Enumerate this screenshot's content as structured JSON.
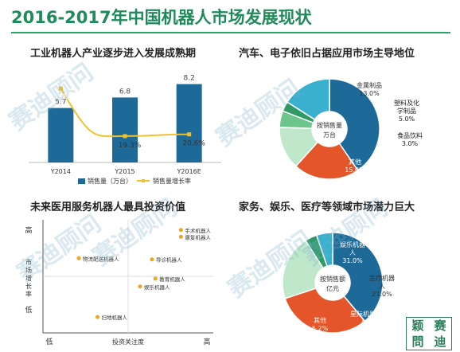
{
  "page": {
    "title": "2016-2017年中国机器人市场发展现状",
    "watermark": "赛迪顾问",
    "logo": [
      "赛",
      "颖",
      "問",
      "迪"
    ]
  },
  "chart_data": [
    {
      "id": "industrial",
      "type": "bar",
      "title": "工业机器人产业逐步进入发展成熟期",
      "categories": [
        "Y2014",
        "Y2015",
        "Y2016E"
      ],
      "series": [
        {
          "name": "销售量（万台）",
          "type": "bar",
          "values": [
            5.7,
            6.8,
            8.2
          ],
          "value_labels": [
            "5.7",
            "6.8",
            "8.2"
          ],
          "color": "#1d6a99"
        },
        {
          "name": "销售量增长率",
          "type": "line",
          "values": [
            54.1,
            19.3,
            20.6
          ],
          "value_labels": [
            "54.1%",
            "19.3%",
            "20.6%"
          ],
          "color": "#f2c12e"
        }
      ],
      "ylim": [
        0,
        10
      ],
      "y2lim": [
        0,
        70
      ],
      "legend": "bottom"
    },
    {
      "id": "industry-share",
      "type": "pie",
      "title": "汽车、电子依旧占据应用市场主导地位",
      "center_label": [
        "按销售量",
        "万台"
      ],
      "slices": [
        {
          "label": "汽车及零部件",
          "lines": [
            "汽车及零",
            "部件"
          ],
          "value": 38.0,
          "value_label": "38.0%",
          "color": "#1d6a99"
        },
        {
          "label": "电子电器",
          "lines": [
            "电子电器"
          ],
          "value": 20.0,
          "value_label": "20.0%",
          "color": "#e5552a"
        },
        {
          "label": "金属制品",
          "lines": [
            "金属制品"
          ],
          "value": 13.0,
          "value_label": "13.0%",
          "color": "#bfe8cb"
        },
        {
          "label": "塑料及化学制品",
          "lines": [
            "塑料及化",
            "学制品"
          ],
          "value": 5.0,
          "value_label": "5.0%",
          "color": "#6cc68c"
        },
        {
          "label": "食品饮料",
          "lines": [
            "食品饮料"
          ],
          "value": 3.0,
          "value_label": "3.0%",
          "color": "#2f9a66"
        },
        {
          "label": "其他",
          "lines": [
            "其他"
          ],
          "value": 15.0,
          "value_label": "15.0%",
          "color": "#3ab0cf"
        }
      ]
    },
    {
      "id": "service-robots",
      "type": "scatter",
      "title": "未来医用服务机器人最具投资价值",
      "xlabel": "投资关注度",
      "ylabel": "市场增长率",
      "x_ticks": [
        "低",
        "高"
      ],
      "y_ticks": [
        "高",
        "低"
      ],
      "xlim": [
        0,
        10
      ],
      "ylim": [
        0,
        10
      ],
      "points": [
        {
          "label": "手术机器人",
          "x": 8.1,
          "y": 9.1
        },
        {
          "label": "康复机器人",
          "x": 8.1,
          "y": 8.5
        },
        {
          "label": "物流配送机器人",
          "x": 2.1,
          "y": 6.6
        },
        {
          "label": "导诊机器人",
          "x": 6.4,
          "y": 6.5
        },
        {
          "label": "教育机器人",
          "x": 6.6,
          "y": 4.8
        },
        {
          "label": "娱乐机器人",
          "x": 5.7,
          "y": 4.1
        },
        {
          "label": "扫地机器人",
          "x": 3.2,
          "y": 1.4
        }
      ]
    },
    {
      "id": "domain-share",
      "type": "pie",
      "title": "家务、娱乐、医疗等领域市场潜力巨大",
      "center_label": [
        "按销售额",
        "亿元"
      ],
      "slices": [
        {
          "label": "家务机器人",
          "lines": [
            "家务机器",
            "人"
          ],
          "value": 38.9,
          "value_label": "38.9%",
          "color": "#1d6a99"
        },
        {
          "label": "娱乐机器人",
          "lines": [
            "娱乐机器",
            "人"
          ],
          "value": 31.0,
          "value_label": "31.0%",
          "color": "#e5552a"
        },
        {
          "label": "医疗机器人",
          "lines": [
            "医疗机器",
            "人"
          ],
          "value": 21.0,
          "value_label": "21.0%",
          "color": "#bfe8cb"
        },
        {
          "label": "星际机器人",
          "lines": [
            "星际机器",
            "人"
          ],
          "value": 3.9,
          "value_label": "3.9%",
          "color": "#2f9a66"
        },
        {
          "label": "其他",
          "lines": [
            "其他"
          ],
          "value": 5.2,
          "value_label": "5.2%",
          "color": "#3ab0cf"
        }
      ]
    }
  ]
}
